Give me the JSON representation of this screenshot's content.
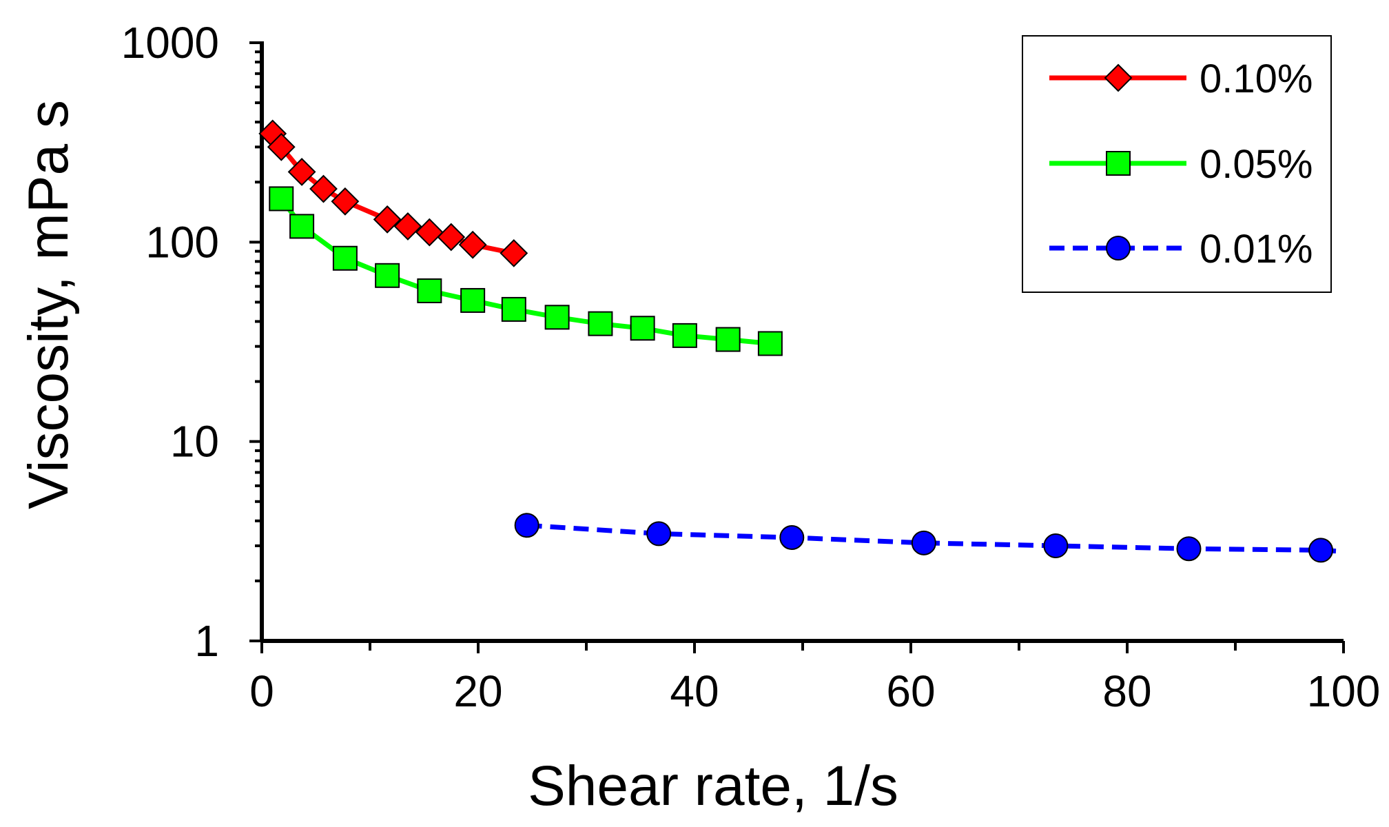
{
  "chart_data": {
    "type": "line",
    "title": "",
    "xlabel": "Shear rate, 1/s",
    "ylabel": "Viscosity, mPa s",
    "x_scale": "linear",
    "y_scale": "log",
    "xlim": [
      0,
      100
    ],
    "ylim": [
      1,
      1000
    ],
    "x_ticks": [
      0,
      20,
      40,
      60,
      80,
      100
    ],
    "x_tick_labels": [
      "0",
      "20",
      "40",
      "60",
      "80",
      "100"
    ],
    "y_ticks": [
      1,
      10,
      100,
      1000
    ],
    "y_tick_labels": [
      "1",
      "10",
      "100",
      "1000"
    ],
    "grid": false,
    "legend_position": "top-right",
    "series": [
      {
        "name": "0.10%",
        "color": "#ff0000",
        "marker": "diamond",
        "line_style": "solid",
        "x": [
          1.0,
          1.8,
          3.7,
          5.7,
          7.7,
          11.6,
          13.5,
          15.5,
          17.5,
          19.5,
          23.3
        ],
        "y": [
          350,
          300,
          225,
          185,
          160,
          130,
          120,
          112,
          106,
          97,
          88
        ]
      },
      {
        "name": "0.05%",
        "color": "#00ff00",
        "marker": "square",
        "line_style": "solid",
        "x": [
          1.8,
          3.7,
          7.7,
          11.6,
          15.5,
          19.5,
          23.3,
          27.3,
          31.3,
          35.2,
          39.1,
          43.1,
          47.0
        ],
        "y": [
          165,
          120,
          83,
          68,
          57,
          51,
          46,
          42,
          39,
          37,
          34,
          32.5,
          31
        ]
      },
      {
        "name": "0.01%",
        "color": "#0000ff",
        "marker": "circle",
        "line_style": "dashed",
        "x": [
          24.5,
          36.7,
          49.0,
          61.2,
          73.4,
          85.7,
          97.9
        ],
        "y": [
          3.8,
          3.45,
          3.3,
          3.1,
          3.0,
          2.9,
          2.85
        ]
      }
    ]
  }
}
